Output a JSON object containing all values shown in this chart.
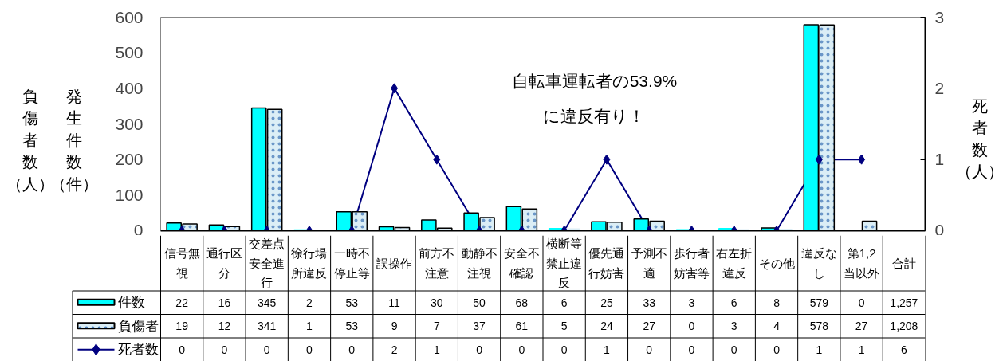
{
  "chart_data": {
    "type": "bar",
    "ylabel": "発生件数（件）",
    "y2label": "死者数（人）",
    "categories": [
      "信号無視",
      "通行区分",
      "交差点安全進行",
      "徐行場所違反",
      "一時不停止等",
      "誤操作",
      "前方不注意",
      "動静不注視",
      "安全不確認",
      "横断等禁止違反",
      "優先通行妨害",
      "予測不適",
      "歩行者妨害等",
      "右左折違反",
      "その他",
      "違反なし",
      "第1,2当以外",
      "合計"
    ],
    "ylim": [
      0,
      600
    ],
    "yticks": [
      0,
      100,
      200,
      300,
      400,
      500,
      600
    ],
    "y2lim": [
      0,
      3
    ],
    "y2ticks": [
      0,
      1,
      2,
      3
    ],
    "legend": "bottom left",
    "series": [
      {
        "name": "件数",
        "color": "#00ffff",
        "values": [
          22,
          16,
          345,
          2,
          53,
          11,
          30,
          50,
          68,
          6,
          25,
          33,
          3,
          6,
          8,
          579,
          0,
          null
        ],
        "value_labels": [
          "22",
          "16",
          "345",
          "2",
          "53",
          "11",
          "30",
          "50",
          "68",
          "6",
          "25",
          "33",
          "3",
          "6",
          "8",
          "579",
          "0",
          "1,257"
        ]
      },
      {
        "name": "負傷者",
        "color": "#dbeef6",
        "values": [
          19,
          12,
          341,
          1,
          53,
          9,
          7,
          37,
          61,
          5,
          24,
          27,
          0,
          3,
          4,
          578,
          27,
          null
        ],
        "value_labels": [
          "19",
          "12",
          "341",
          "1",
          "53",
          "9",
          "7",
          "37",
          "61",
          "5",
          "24",
          "27",
          "0",
          "3",
          "4",
          "578",
          "27",
          "1,208"
        ]
      },
      {
        "name": "死者数",
        "type": "line",
        "axis": "y2",
        "color": "#000080",
        "marker": "diamond",
        "values": [
          0,
          0,
          0,
          0,
          0,
          2,
          1,
          0,
          0,
          0,
          1,
          0,
          0,
          0,
          0,
          1,
          1,
          null
        ],
        "value_labels": [
          "0",
          "0",
          "0",
          "0",
          "0",
          "2",
          "1",
          "0",
          "0",
          "0",
          "1",
          "0",
          "0",
          "0",
          "0",
          "1",
          "1",
          "6"
        ]
      }
    ],
    "annotations": [
      "負傷者数（人）",
      "自転車運転者の53.9%\nに違反有り！"
    ]
  }
}
